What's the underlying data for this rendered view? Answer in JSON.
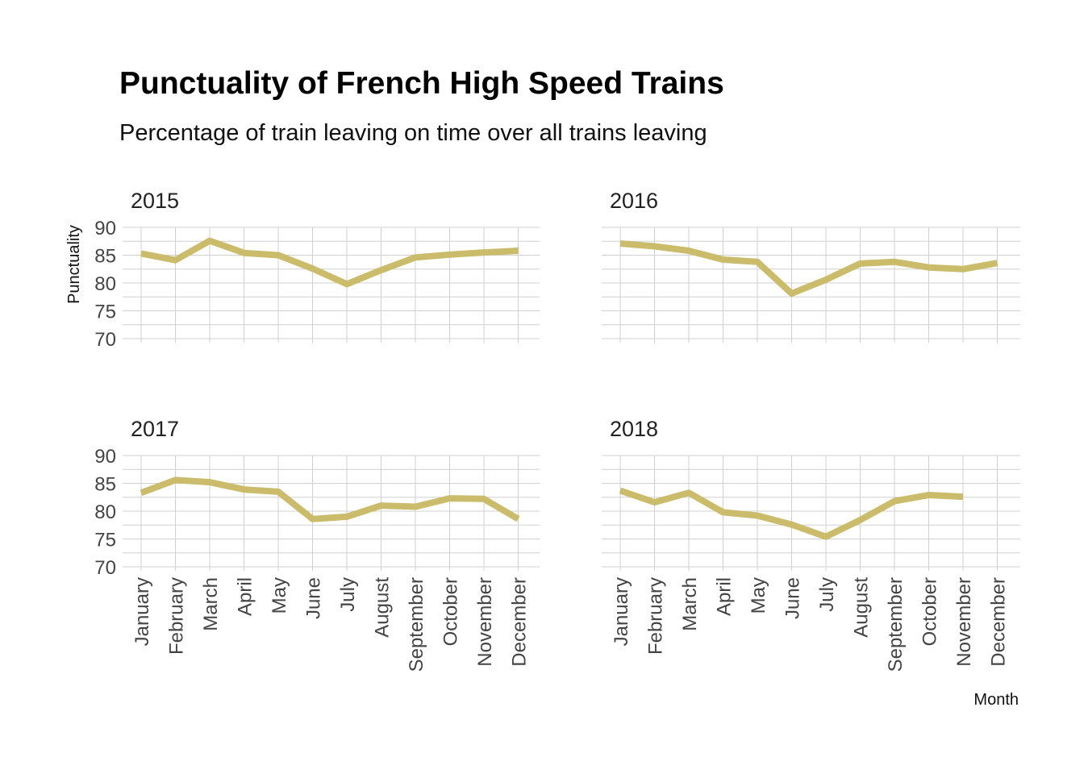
{
  "title": "Punctuality of French High Speed Trains",
  "subtitle": "Percentage of train leaving on time over all trains leaving",
  "ylabel": "Punctuality",
  "xlabel": "Month",
  "colors": {
    "line": "#cbbc6b",
    "grid": "#d0d0d0",
    "tick_text": "#444444"
  },
  "chart_data": {
    "type": "line",
    "layout": "facet-2x2",
    "categories": [
      "January",
      "February",
      "March",
      "April",
      "May",
      "June",
      "July",
      "August",
      "September",
      "October",
      "November",
      "December"
    ],
    "ylim": [
      70,
      90
    ],
    "yticks": [
      70,
      75,
      80,
      85,
      90
    ],
    "grid": true,
    "legend": "none",
    "facets": [
      {
        "label": "2015",
        "values": [
          85.3,
          84.1,
          87.6,
          85.4,
          85.0,
          82.6,
          79.8,
          82.3,
          84.6,
          85.1,
          85.5,
          85.8
        ]
      },
      {
        "label": "2016",
        "values": [
          87.1,
          86.6,
          85.8,
          84.2,
          83.8,
          78.1,
          80.6,
          83.5,
          83.8,
          82.8,
          82.5,
          83.6
        ]
      },
      {
        "label": "2017",
        "values": [
          83.3,
          85.6,
          85.2,
          83.9,
          83.5,
          78.6,
          79.0,
          81.0,
          80.8,
          82.3,
          82.2,
          78.6
        ]
      },
      {
        "label": "2018",
        "values": [
          83.7,
          81.6,
          83.3,
          79.8,
          79.2,
          77.6,
          75.4,
          78.4,
          81.8,
          82.9,
          82.6
        ]
      }
    ]
  }
}
